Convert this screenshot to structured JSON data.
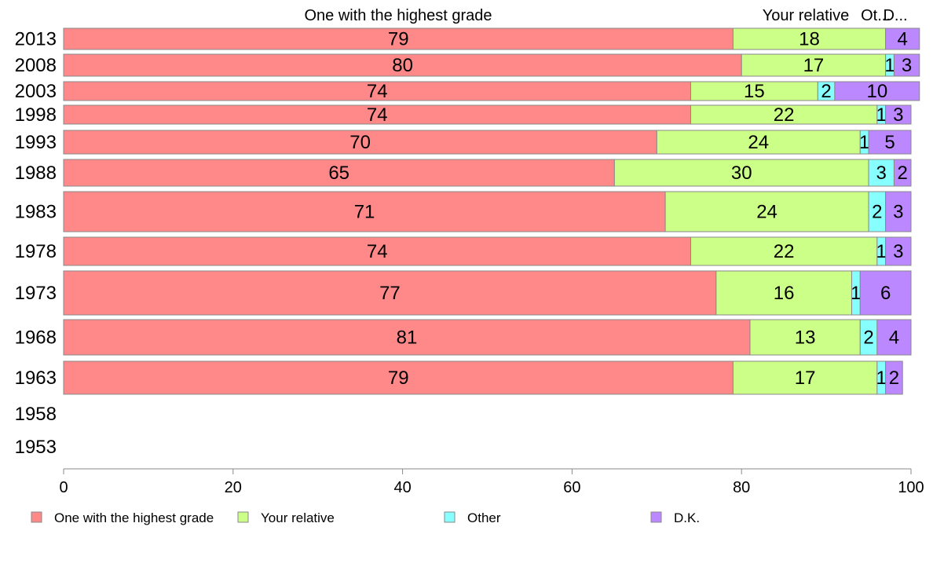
{
  "chart_data": {
    "type": "bar",
    "orientation": "horizontal",
    "stacked": true,
    "categories": [
      "2013",
      "2008",
      "2003",
      "1998",
      "1993",
      "1988",
      "1983",
      "1978",
      "1973",
      "1968",
      "1963",
      "1958",
      "1953"
    ],
    "series": [
      {
        "name": "One with the highest grade",
        "color": "#ff8888",
        "values": [
          79,
          80,
          74,
          74,
          70,
          65,
          71,
          74,
          77,
          81,
          79,
          null,
          null
        ]
      },
      {
        "name": "Your relative",
        "color": "#ccff88",
        "values": [
          18,
          17,
          15,
          22,
          24,
          30,
          24,
          22,
          16,
          13,
          17,
          null,
          null
        ]
      },
      {
        "name": "Other",
        "color": "#88ffff",
        "values": [
          0,
          1,
          2,
          1,
          1,
          3,
          2,
          1,
          1,
          2,
          1,
          null,
          null
        ]
      },
      {
        "name": "D.K.",
        "color": "#bb88ff",
        "values": [
          4,
          3,
          10,
          3,
          5,
          2,
          3,
          3,
          6,
          4,
          2,
          null,
          null
        ]
      }
    ],
    "column_headers": [
      "One with the highest grade",
      "Your relative",
      "Ot...",
      "D..."
    ],
    "xticks": [
      "0",
      "20",
      "40",
      "60",
      "80",
      "100"
    ],
    "xlim": [
      0,
      100
    ],
    "legend_position": "bottom",
    "grid": false
  }
}
